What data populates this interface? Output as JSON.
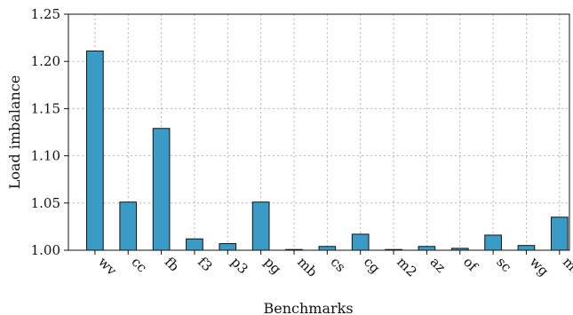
{
  "chart_data": {
    "type": "bar",
    "xlabel": "Benchmarks",
    "ylabel": "Load imbalance",
    "ylim": [
      1.0,
      1.25
    ],
    "yticks": [
      "1.00",
      "1.05",
      "1.10",
      "1.15",
      "1.20",
      "1.25"
    ],
    "grid": true,
    "bar_color": "#3a9cc6",
    "bar_edge_color": "#111111",
    "categories": [
      "wv",
      "cc",
      "fb",
      "f3",
      "p3",
      "pg",
      "mb",
      "cs",
      "cg",
      "m2",
      "az",
      "of",
      "sc",
      "wg",
      "mean"
    ],
    "values": [
      1.211,
      1.051,
      1.129,
      1.012,
      1.007,
      1.051,
      1.0,
      1.004,
      1.017,
      1.0,
      1.004,
      1.002,
      1.016,
      1.005,
      1.035
    ]
  }
}
